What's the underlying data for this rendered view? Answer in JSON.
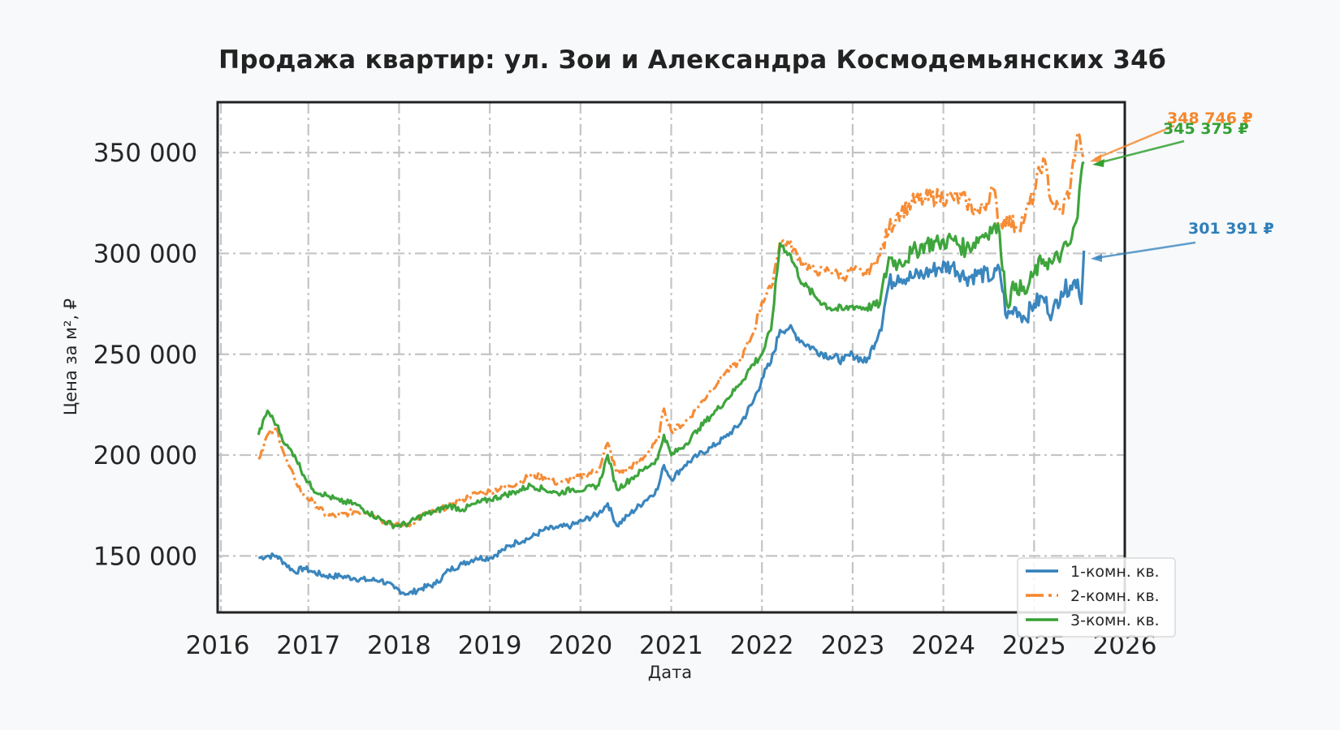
{
  "title": "Продажа квартир: ул. Зои и Александра Космодемьянских 34б",
  "colors": {
    "s1": "#2f7fba",
    "s2": "#f5862a",
    "s3": "#34a033",
    "grid": "#c4c4c4",
    "frame": "#222222",
    "background": "#f7f9fb"
  },
  "annotations": [
    {
      "label": "348 746 ₽",
      "color": "#f5862a"
    },
    {
      "label": "345 375 ₽",
      "color": "#34a033"
    },
    {
      "label": "301 391 ₽",
      "color": "#2f7fba"
    }
  ],
  "chart_data": {
    "type": "line",
    "title": "Продажа квартир: ул. Зои и Александра Космодемьянских 34б",
    "xlabel": "Дата",
    "ylabel": "Цена за м², ₽",
    "xlim": [
      2016,
      2026
    ],
    "ylim": [
      122000,
      375000
    ],
    "x_ticks": [
      "2016",
      "2017",
      "2018",
      "2019",
      "2020",
      "2021",
      "2022",
      "2023",
      "2024",
      "2025",
      "2026"
    ],
    "y_ticks": [
      "150 000",
      "200 000",
      "250 000",
      "300 000",
      "350 000"
    ],
    "grid": true,
    "legend_position": "lower right",
    "x": [
      2016.45,
      2016.55,
      2016.65,
      2016.75,
      2016.85,
      2016.95,
      2017.05,
      2017.2,
      2017.35,
      2017.5,
      2017.65,
      2017.8,
      2017.95,
      2018.1,
      2018.25,
      2018.4,
      2018.55,
      2018.7,
      2018.85,
      2019.0,
      2019.15,
      2019.3,
      2019.45,
      2019.6,
      2019.75,
      2019.9,
      2020.05,
      2020.2,
      2020.3,
      2020.4,
      2020.55,
      2020.7,
      2020.85,
      2020.92,
      2021.0,
      2021.15,
      2021.3,
      2021.45,
      2021.6,
      2021.75,
      2021.9,
      2022.0,
      2022.1,
      2022.2,
      2022.3,
      2022.45,
      2022.6,
      2022.75,
      2022.9,
      2023.0,
      2023.15,
      2023.3,
      2023.4,
      2023.5,
      2023.65,
      2023.8,
      2023.95,
      2024.1,
      2024.25,
      2024.4,
      2024.55,
      2024.62,
      2024.7,
      2024.8,
      2024.9,
      2025.0,
      2025.1,
      2025.2,
      2025.3,
      2025.4,
      2025.48,
      2025.52,
      2025.55
    ],
    "series": [
      {
        "name": "1-комн. кв.",
        "style": "solid",
        "values": [
          149000,
          150000,
          150000,
          146000,
          142000,
          144000,
          142000,
          140000,
          140000,
          139000,
          138000,
          138000,
          134000,
          131000,
          134000,
          136000,
          143000,
          146000,
          149000,
          149000,
          153000,
          157000,
          159000,
          163000,
          164000,
          165000,
          168000,
          171000,
          176000,
          165000,
          171000,
          177000,
          183000,
          195000,
          188000,
          195000,
          200000,
          204000,
          209000,
          215000,
          226000,
          238000,
          246000,
          262000,
          263000,
          256000,
          252000,
          249000,
          247000,
          250000,
          246000,
          262000,
          285000,
          289000,
          288000,
          290000,
          293000,
          294000,
          288000,
          290000,
          288000,
          292000,
          268000,
          273000,
          268000,
          275000,
          278000,
          270000,
          281000,
          284000,
          287000,
          275000,
          301391
        ]
      },
      {
        "name": "2-комн. кв.",
        "style": "dashdot",
        "values": [
          198000,
          210000,
          213000,
          198000,
          188000,
          180000,
          177000,
          170000,
          170000,
          172000,
          172000,
          168000,
          165000,
          165000,
          170000,
          172000,
          175000,
          178000,
          181000,
          182000,
          184000,
          186000,
          190000,
          189000,
          186000,
          188000,
          190000,
          193000,
          206000,
          191000,
          194000,
          199000,
          207000,
          223000,
          212000,
          216000,
          224000,
          233000,
          241000,
          246000,
          260000,
          276000,
          283000,
          306000,
          305000,
          295000,
          291000,
          292000,
          288000,
          292000,
          290000,
          299000,
          312000,
          320000,
          325000,
          327000,
          328000,
          328000,
          326000,
          320000,
          332000,
          314000,
          318000,
          313000,
          318000,
          330000,
          347000,
          325000,
          320000,
          333000,
          360000,
          352000,
          348746
        ]
      },
      {
        "name": "3-комн. кв.",
        "style": "solid",
        "values": [
          210000,
          222000,
          215000,
          205000,
          200000,
          190000,
          183000,
          180000,
          177000,
          176000,
          172000,
          168000,
          165000,
          166000,
          170000,
          172000,
          175000,
          173000,
          176000,
          178000,
          180000,
          182000,
          185000,
          183000,
          181000,
          183000,
          183000,
          185000,
          200000,
          183000,
          188000,
          193000,
          198000,
          210000,
          200000,
          205000,
          213000,
          220000,
          227000,
          235000,
          245000,
          250000,
          262000,
          305000,
          300000,
          285000,
          278000,
          273000,
          272000,
          274000,
          273000,
          275000,
          298000,
          295000,
          300000,
          305000,
          305000,
          307000,
          302000,
          308000,
          313000,
          310000,
          275000,
          285000,
          280000,
          290000,
          297000,
          295000,
          300000,
          305000,
          318000,
          340000,
          345375
        ]
      }
    ]
  },
  "legend": [
    {
      "label": "1-комн. кв.",
      "color": "#2f7fba",
      "style": "solid"
    },
    {
      "label": "2-комн. кв.",
      "color": "#f5862a",
      "style": "dashdot"
    },
    {
      "label": "3-комн. кв.",
      "color": "#34a033",
      "style": "solid"
    }
  ]
}
